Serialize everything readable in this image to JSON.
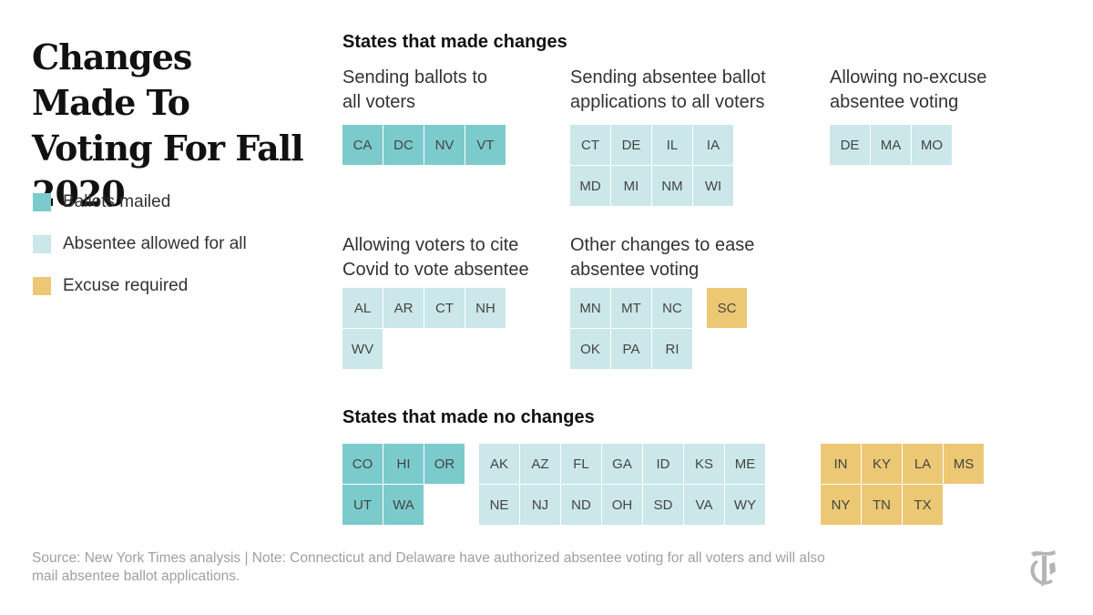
{
  "title": "Changes Made To Voting For Fall 2020",
  "legend": [
    {
      "label": "Ballots mailed",
      "color": "#7ccbcc"
    },
    {
      "label": "Absentee allowed for all",
      "color": "#cbe7e9"
    },
    {
      "label": "Excuse required",
      "color": "#ecc874"
    }
  ],
  "changes": {
    "heading": "States that made changes",
    "groups": [
      {
        "label": "Sending ballots to all voters",
        "states": [
          "CA",
          "DC",
          "NV",
          "VT"
        ]
      },
      {
        "label": "Sending absentee ballot applications to all voters",
        "states": [
          "CT",
          "DE",
          "IL",
          "IA",
          "MD",
          "MI",
          "NM",
          "WI"
        ]
      },
      {
        "label": "Allowing no-excuse absentee voting",
        "states": [
          "DE",
          "MA",
          "MO"
        ]
      },
      {
        "label": "Allowing voters to cite Covid to vote absentee",
        "states": [
          "AL",
          "AR",
          "CT",
          "NH",
          "WV"
        ]
      },
      {
        "label": "Other changes to ease absentee voting",
        "states": [
          "MN",
          "MT",
          "NC",
          "OK",
          "PA",
          "RI"
        ],
        "excuse_states": [
          "SC"
        ]
      }
    ]
  },
  "no_changes": {
    "heading": "States that made no changes",
    "mailed": [
      "CO",
      "HI",
      "OR",
      "UT",
      "WA"
    ],
    "absentee": [
      "AK",
      "AZ",
      "FL",
      "GA",
      "ID",
      "KS",
      "ME",
      "NE",
      "NJ",
      "ND",
      "OH",
      "SD",
      "VA",
      "WY"
    ],
    "excuse": [
      "IN",
      "KY",
      "LA",
      "MS",
      "NY",
      "TN",
      "TX"
    ]
  },
  "source": "Source: New York Times analysis | Note: Connecticut and Delaware have authorized absentee voting for all voters and will also mail absentee ballot applications.",
  "logo": {
    "icon": "nyt-logo-icon"
  }
}
